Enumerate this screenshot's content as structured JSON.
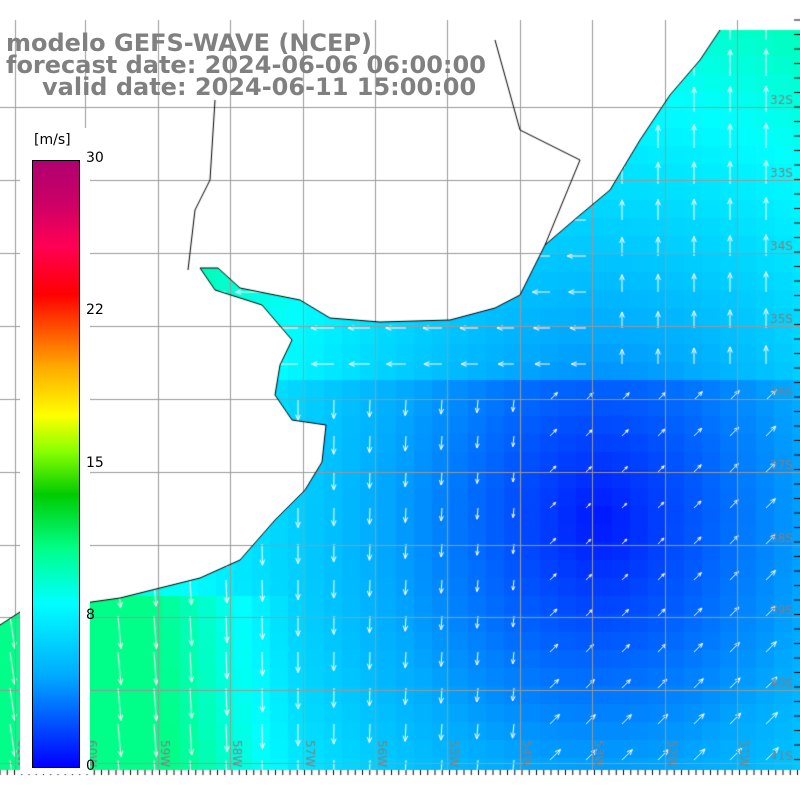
{
  "title": {
    "line1": "modelo GEFS-WAVE (NCEP)",
    "line2": "forecast date: 2024-06-06 06:00:00",
    "line3": "valid date: 2024-06-11 15:00:00"
  },
  "colorbar": {
    "unit": "[m/s]",
    "ticks": [
      "30",
      "22",
      "15",
      "8",
      "0"
    ],
    "tick_values": [
      30,
      22,
      15,
      8,
      0
    ],
    "range": [
      0,
      30
    ]
  },
  "grid": {
    "lat_labels": [
      "32S",
      "33S",
      "34S",
      "35S",
      "36S",
      "37S",
      "38S",
      "39S",
      "40S",
      "41S"
    ],
    "lon_labels": [
      "61W",
      "60W",
      "59W",
      "58W",
      "57W",
      "56W",
      "55W",
      "54W",
      "53W",
      "52W",
      "51W"
    ]
  },
  "colors": {
    "label": "#808080",
    "land": "#ffffff",
    "coast": "#000000"
  }
}
